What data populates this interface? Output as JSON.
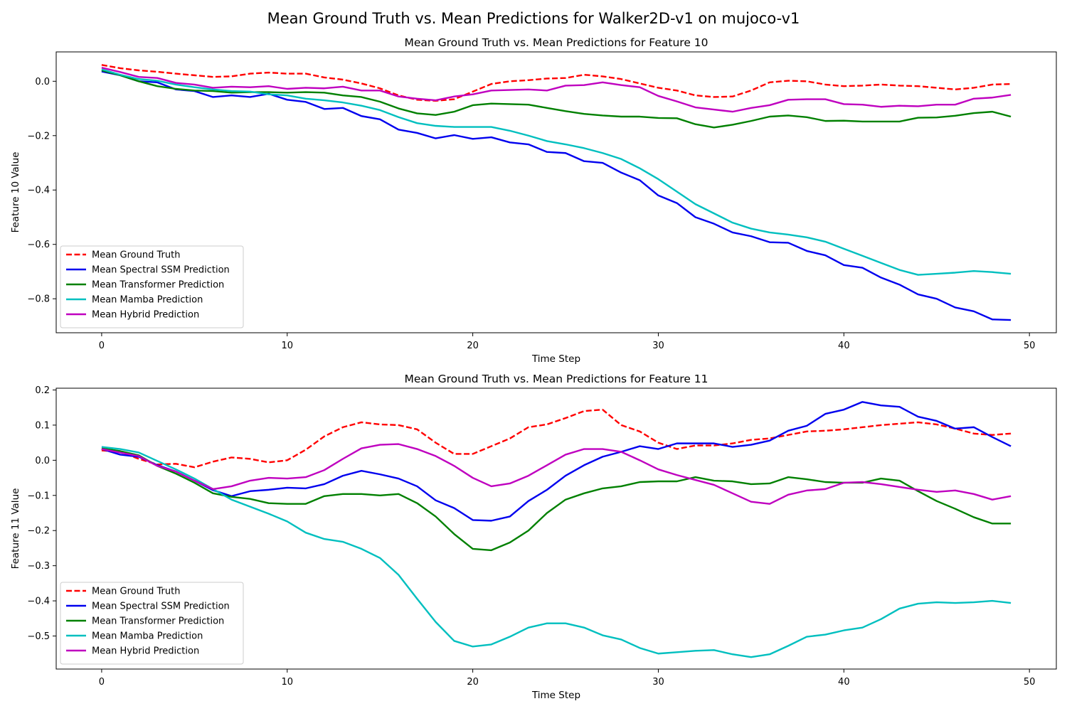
{
  "figure": {
    "suptitle": "Mean Ground Truth vs. Mean Predictions for Walker2D-v1 on mujoco-v1"
  },
  "chart_data": [
    {
      "type": "line",
      "title": "Mean Ground Truth vs. Mean Predictions for Feature 10",
      "xlabel": "Time Step",
      "ylabel": "Feature 10 Value",
      "xlim": [
        -2.45,
        51.45
      ],
      "ylim": [
        -0.925,
        0.108
      ],
      "xticks": [
        0,
        10,
        20,
        30,
        40,
        50
      ],
      "yticks": [
        0.0,
        -0.2,
        -0.4,
        -0.6,
        -0.8
      ],
      "ytick_labels": [
        "0.0",
        "−0.2",
        "−0.4",
        "−0.6",
        "−0.8"
      ],
      "xtick_labels": [
        "0",
        "10",
        "20",
        "30",
        "40",
        "50"
      ],
      "grid": false,
      "legend": "lower-left",
      "series": [
        {
          "name": "Mean Ground Truth",
          "color": "#ff0000",
          "dash": "dashed",
          "values": [
            0.06,
            0.048,
            0.04,
            0.035,
            0.028,
            0.022,
            0.016,
            0.018,
            0.028,
            0.032,
            0.028,
            0.028,
            0.014,
            0.006,
            -0.008,
            -0.026,
            -0.052,
            -0.068,
            -0.072,
            -0.066,
            -0.038,
            -0.01,
            0.0,
            0.004,
            0.01,
            0.012,
            0.024,
            0.018,
            0.008,
            -0.008,
            -0.024,
            -0.034,
            -0.052,
            -0.058,
            -0.056,
            -0.034,
            -0.004,
            0.002,
            0.0,
            -0.012,
            -0.018,
            -0.016,
            -0.012,
            -0.016,
            -0.018,
            -0.024,
            -0.03,
            -0.024,
            -0.012,
            -0.01
          ]
        },
        {
          "name": "Mean Spectral SSM Prediction",
          "color": "#0000ee",
          "dash": "solid",
          "values": [
            0.036,
            0.022,
            0.0,
            -0.004,
            -0.03,
            -0.036,
            -0.058,
            -0.052,
            -0.058,
            -0.046,
            -0.068,
            -0.076,
            -0.102,
            -0.098,
            -0.128,
            -0.14,
            -0.178,
            -0.19,
            -0.21,
            -0.198,
            -0.212,
            -0.206,
            -0.225,
            -0.232,
            -0.26,
            -0.264,
            -0.294,
            -0.3,
            -0.336,
            -0.364,
            -0.42,
            -0.448,
            -0.5,
            -0.524,
            -0.556,
            -0.57,
            -0.592,
            -0.594,
            -0.624,
            -0.64,
            -0.676,
            -0.686,
            -0.722,
            -0.748,
            -0.784,
            -0.8,
            -0.832,
            -0.846,
            -0.876,
            -0.878
          ]
        },
        {
          "name": "Mean Transformer Prediction",
          "color": "#008000",
          "dash": "solid",
          "values": [
            0.04,
            0.022,
            0.0,
            -0.018,
            -0.028,
            -0.034,
            -0.036,
            -0.042,
            -0.04,
            -0.04,
            -0.042,
            -0.04,
            -0.042,
            -0.052,
            -0.058,
            -0.075,
            -0.1,
            -0.118,
            -0.124,
            -0.112,
            -0.088,
            -0.082,
            -0.084,
            -0.086,
            -0.098,
            -0.11,
            -0.12,
            -0.126,
            -0.13,
            -0.13,
            -0.135,
            -0.136,
            -0.158,
            -0.17,
            -0.16,
            -0.146,
            -0.13,
            -0.126,
            -0.132,
            -0.146,
            -0.145,
            -0.148,
            -0.148,
            -0.148,
            -0.134,
            -0.133,
            -0.127,
            -0.117,
            -0.112,
            -0.13
          ]
        },
        {
          "name": "Mean Mamba Prediction",
          "color": "#00bfbf",
          "dash": "solid",
          "values": [
            0.044,
            0.024,
            0.008,
            0.002,
            -0.012,
            -0.022,
            -0.03,
            -0.036,
            -0.038,
            -0.048,
            -0.052,
            -0.064,
            -0.07,
            -0.078,
            -0.09,
            -0.106,
            -0.132,
            -0.154,
            -0.164,
            -0.168,
            -0.168,
            -0.168,
            -0.182,
            -0.2,
            -0.22,
            -0.232,
            -0.246,
            -0.264,
            -0.286,
            -0.32,
            -0.36,
            -0.406,
            -0.452,
            -0.486,
            -0.52,
            -0.542,
            -0.556,
            -0.564,
            -0.574,
            -0.59,
            -0.616,
            -0.642,
            -0.668,
            -0.694,
            -0.712,
            -0.708,
            -0.704,
            -0.698,
            -0.702,
            -0.708
          ]
        },
        {
          "name": "Mean Hybrid Prediction",
          "color": "#bf00bf",
          "dash": "solid",
          "values": [
            0.05,
            0.034,
            0.016,
            0.012,
            -0.006,
            -0.012,
            -0.024,
            -0.02,
            -0.022,
            -0.018,
            -0.028,
            -0.024,
            -0.026,
            -0.02,
            -0.034,
            -0.034,
            -0.056,
            -0.064,
            -0.07,
            -0.056,
            -0.048,
            -0.034,
            -0.032,
            -0.03,
            -0.034,
            -0.016,
            -0.014,
            -0.004,
            -0.014,
            -0.022,
            -0.054,
            -0.074,
            -0.096,
            -0.104,
            -0.112,
            -0.098,
            -0.088,
            -0.068,
            -0.066,
            -0.066,
            -0.084,
            -0.086,
            -0.094,
            -0.09,
            -0.092,
            -0.086,
            -0.086,
            -0.064,
            -0.06,
            -0.05
          ]
        }
      ]
    },
    {
      "type": "line",
      "title": "Mean Ground Truth vs. Mean Predictions for Feature 11",
      "xlabel": "Time Step",
      "ylabel": "Feature 11 Value",
      "xlim": [
        -2.45,
        51.45
      ],
      "ylim": [
        -0.594,
        0.205
      ],
      "xticks": [
        0,
        10,
        20,
        30,
        40,
        50
      ],
      "yticks": [
        0.2,
        0.1,
        0.0,
        -0.1,
        -0.2,
        -0.3,
        -0.4,
        -0.5
      ],
      "ytick_labels": [
        "0.2",
        "0.1",
        "0.0",
        "−0.1",
        "−0.2",
        "−0.3",
        "−0.4",
        "−0.5"
      ],
      "xtick_labels": [
        "0",
        "10",
        "20",
        "30",
        "40",
        "50"
      ],
      "grid": false,
      "legend": "lower-left",
      "series": [
        {
          "name": "Mean Ground Truth",
          "color": "#ff0000",
          "dash": "dashed",
          "values": [
            0.028,
            0.024,
            0.004,
            -0.012,
            -0.01,
            -0.02,
            -0.004,
            0.008,
            0.004,
            -0.006,
            0.0,
            0.03,
            0.068,
            0.094,
            0.108,
            0.102,
            0.1,
            0.088,
            0.05,
            0.018,
            0.018,
            0.04,
            0.062,
            0.094,
            0.102,
            0.12,
            0.14,
            0.144,
            0.1,
            0.082,
            0.05,
            0.032,
            0.042,
            0.042,
            0.048,
            0.058,
            0.062,
            0.072,
            0.082,
            0.084,
            0.088,
            0.094,
            0.1,
            0.104,
            0.108,
            0.102,
            0.09,
            0.076,
            0.072,
            0.076
          ]
        },
        {
          "name": "Mean Spectral SSM Prediction",
          "color": "#0000ee",
          "dash": "solid",
          "values": [
            0.032,
            0.016,
            0.01,
            -0.014,
            -0.032,
            -0.058,
            -0.085,
            -0.102,
            -0.088,
            -0.084,
            -0.078,
            -0.08,
            -0.068,
            -0.044,
            -0.03,
            -0.04,
            -0.052,
            -0.074,
            -0.114,
            -0.136,
            -0.17,
            -0.172,
            -0.16,
            -0.116,
            -0.084,
            -0.044,
            -0.014,
            0.01,
            0.024,
            0.04,
            0.032,
            0.048,
            0.048,
            0.048,
            0.038,
            0.044,
            0.056,
            0.084,
            0.098,
            0.132,
            0.144,
            0.166,
            0.156,
            0.152,
            0.124,
            0.112,
            0.09,
            0.094,
            0.066,
            0.04
          ]
        },
        {
          "name": "Mean Transformer Prediction",
          "color": "#008000",
          "dash": "solid",
          "values": [
            0.034,
            0.026,
            0.014,
            -0.016,
            -0.038,
            -0.064,
            -0.094,
            -0.104,
            -0.11,
            -0.122,
            -0.124,
            -0.124,
            -0.102,
            -0.096,
            -0.096,
            -0.1,
            -0.096,
            -0.122,
            -0.16,
            -0.21,
            -0.252,
            -0.256,
            -0.234,
            -0.2,
            -0.15,
            -0.112,
            -0.094,
            -0.08,
            -0.074,
            -0.062,
            -0.06,
            -0.06,
            -0.048,
            -0.058,
            -0.06,
            -0.068,
            -0.066,
            -0.048,
            -0.054,
            -0.062,
            -0.064,
            -0.064,
            -0.052,
            -0.058,
            -0.088,
            -0.116,
            -0.138,
            -0.162,
            -0.18,
            -0.18
          ]
        },
        {
          "name": "Mean Mamba Prediction",
          "color": "#00bfbf",
          "dash": "solid",
          "values": [
            0.038,
            0.032,
            0.022,
            -0.002,
            -0.026,
            -0.052,
            -0.082,
            -0.112,
            -0.132,
            -0.152,
            -0.174,
            -0.206,
            -0.224,
            -0.232,
            -0.252,
            -0.278,
            -0.326,
            -0.394,
            -0.46,
            -0.514,
            -0.53,
            -0.524,
            -0.502,
            -0.476,
            -0.464,
            -0.464,
            -0.476,
            -0.498,
            -0.51,
            -0.534,
            -0.55,
            -0.546,
            -0.542,
            -0.54,
            -0.552,
            -0.56,
            -0.552,
            -0.528,
            -0.502,
            -0.496,
            -0.484,
            -0.476,
            -0.452,
            -0.422,
            -0.408,
            -0.404,
            -0.406,
            -0.404,
            -0.4,
            -0.406
          ]
        },
        {
          "name": "Mean Hybrid Prediction",
          "color": "#bf00bf",
          "dash": "solid",
          "values": [
            0.032,
            0.022,
            0.012,
            -0.016,
            -0.032,
            -0.058,
            -0.082,
            -0.074,
            -0.058,
            -0.05,
            -0.052,
            -0.048,
            -0.028,
            0.004,
            0.034,
            0.044,
            0.046,
            0.032,
            0.012,
            -0.016,
            -0.05,
            -0.074,
            -0.066,
            -0.044,
            -0.014,
            0.016,
            0.032,
            0.032,
            0.024,
            0.0,
            -0.026,
            -0.042,
            -0.056,
            -0.07,
            -0.094,
            -0.118,
            -0.124,
            -0.098,
            -0.086,
            -0.082,
            -0.064,
            -0.062,
            -0.068,
            -0.076,
            -0.084,
            -0.09,
            -0.086,
            -0.096,
            -0.112,
            -0.102
          ]
        }
      ]
    }
  ]
}
